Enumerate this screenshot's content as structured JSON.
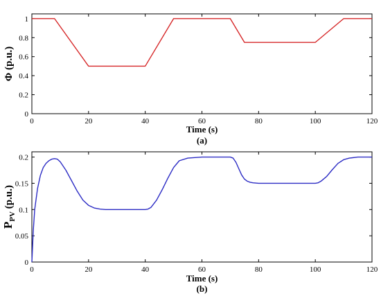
{
  "chart_data": [
    {
      "type": "line",
      "panel_label": "(a)",
      "xlabel": "Time (s)",
      "ylabel": "Φ (p.u.)",
      "xlim": [
        0,
        120
      ],
      "ylim": [
        0,
        1.05
      ],
      "xticks": [
        0,
        20,
        40,
        60,
        80,
        100,
        120
      ],
      "yticks": [
        0,
        0.2,
        0.4,
        0.6,
        0.8,
        1
      ],
      "ytick_labels": [
        "0",
        "0.2",
        "0.4",
        "0.6",
        "0.8",
        "1"
      ],
      "color": "#d62728",
      "series": [
        {
          "x": [
            0,
            8,
            20,
            40,
            50,
            70,
            75,
            100,
            110,
            120
          ],
          "y": [
            1,
            1,
            0.5,
            0.5,
            1,
            1,
            0.75,
            0.75,
            1,
            1
          ]
        }
      ]
    },
    {
      "type": "line",
      "panel_label": "(b)",
      "xlabel": "Time (s)",
      "ylabel": "P",
      "ylabel_sub": "PV",
      "ylabel_suffix": " (p.u.)",
      "xlim": [
        0,
        120
      ],
      "ylim": [
        0,
        0.21
      ],
      "xticks": [
        0,
        20,
        40,
        60,
        80,
        100,
        120
      ],
      "yticks": [
        0,
        0.05,
        0.1,
        0.15,
        0.2
      ],
      "ytick_labels": [
        "0",
        "0.05",
        "0.1",
        "0.15",
        "0.2"
      ],
      "color": "#2b2bc4",
      "series": [
        {
          "x": [
            0,
            0.5,
            1,
            2,
            3,
            4,
            5,
            6,
            7,
            8,
            9,
            10,
            12,
            14,
            16,
            18,
            20,
            22,
            24,
            26,
            30,
            35,
            40,
            41,
            42,
            44,
            46,
            48,
            50,
            52,
            55,
            60,
            65,
            70,
            71,
            72,
            73,
            74,
            75,
            76,
            77,
            78,
            80,
            85,
            90,
            95,
            100,
            101,
            102,
            104,
            106,
            108,
            110,
            112,
            115,
            120
          ],
          "y": [
            0,
            0.06,
            0.1,
            0.14,
            0.165,
            0.18,
            0.188,
            0.193,
            0.196,
            0.197,
            0.196,
            0.191,
            0.175,
            0.155,
            0.135,
            0.118,
            0.108,
            0.103,
            0.101,
            0.1,
            0.1,
            0.1,
            0.1,
            0.101,
            0.104,
            0.118,
            0.138,
            0.16,
            0.18,
            0.193,
            0.198,
            0.2,
            0.2,
            0.2,
            0.198,
            0.19,
            0.178,
            0.166,
            0.158,
            0.154,
            0.152,
            0.151,
            0.15,
            0.15,
            0.15,
            0.15,
            0.15,
            0.151,
            0.154,
            0.163,
            0.176,
            0.188,
            0.195,
            0.198,
            0.2,
            0.2
          ]
        }
      ]
    }
  ]
}
